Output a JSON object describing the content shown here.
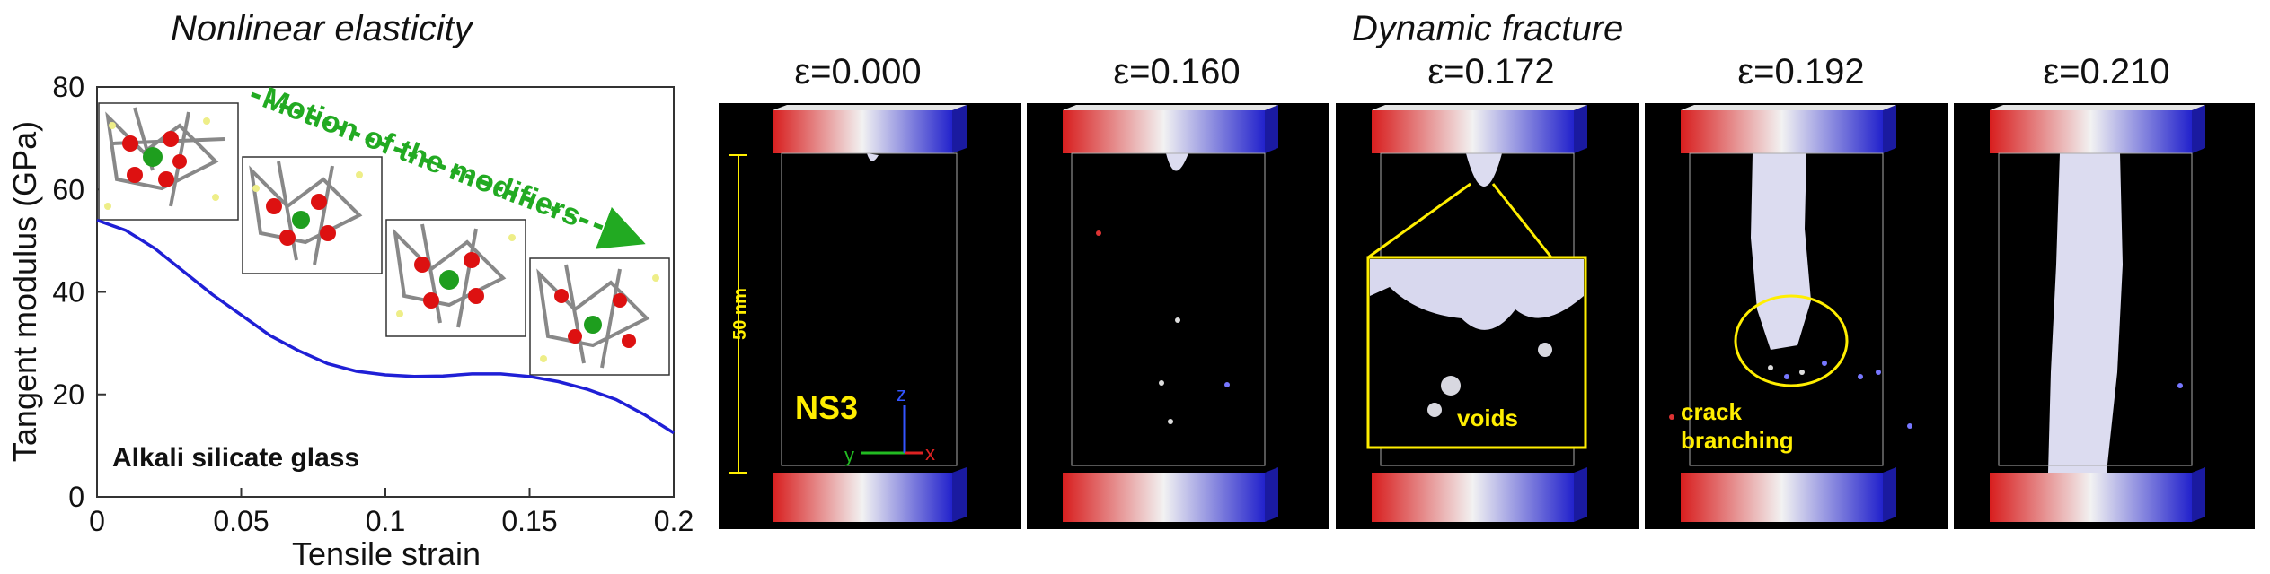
{
  "left": {
    "section_title": "Nonlinear elasticity",
    "annotation": "Motion of the modifiers",
    "material_label": "Alkali silicate glass",
    "chart_data": {
      "type": "line",
      "title": "",
      "xlabel": "Tensile strain",
      "ylabel": "Tangent modulus (GPa)",
      "xlim": [
        0,
        0.2
      ],
      "ylim": [
        0,
        80
      ],
      "xticks": [
        "0",
        "0.05",
        "0.1",
        "0.15",
        "0.2"
      ],
      "yticks": [
        "0",
        "20",
        "40",
        "60",
        "80"
      ],
      "series": [
        {
          "color": "#1f1fd6",
          "x": [
            0,
            0.01,
            0.02,
            0.03,
            0.04,
            0.05,
            0.06,
            0.07,
            0.08,
            0.09,
            0.1,
            0.11,
            0.12,
            0.13,
            0.14,
            0.15,
            0.16,
            0.17,
            0.18,
            0.19,
            0.2
          ],
          "y": [
            54,
            52,
            48.5,
            44,
            39.5,
            35.5,
            31.5,
            28.5,
            26,
            24.5,
            23.8,
            23.5,
            23.6,
            24,
            24,
            23.5,
            22.5,
            21,
            19,
            16,
            12.5
          ]
        }
      ]
    }
  },
  "right": {
    "section_title": "Dynamic fracture",
    "scale_label": "50 nm",
    "sample_label": "NS3",
    "axis_labels": {
      "y": "y",
      "z": "z",
      "x": "x"
    },
    "voids_label": "voids",
    "crack_label_1": "crack",
    "crack_label_2": "branching",
    "colors": {
      "highlight": "#ffee00",
      "slab_red": "#d81e1e",
      "slab_blue": "#2222cc"
    },
    "panels": [
      {
        "strain": "ε=0.000"
      },
      {
        "strain": "ε=0.160"
      },
      {
        "strain": "ε=0.172"
      },
      {
        "strain": "ε=0.192"
      },
      {
        "strain": "ε=0.210"
      }
    ]
  }
}
